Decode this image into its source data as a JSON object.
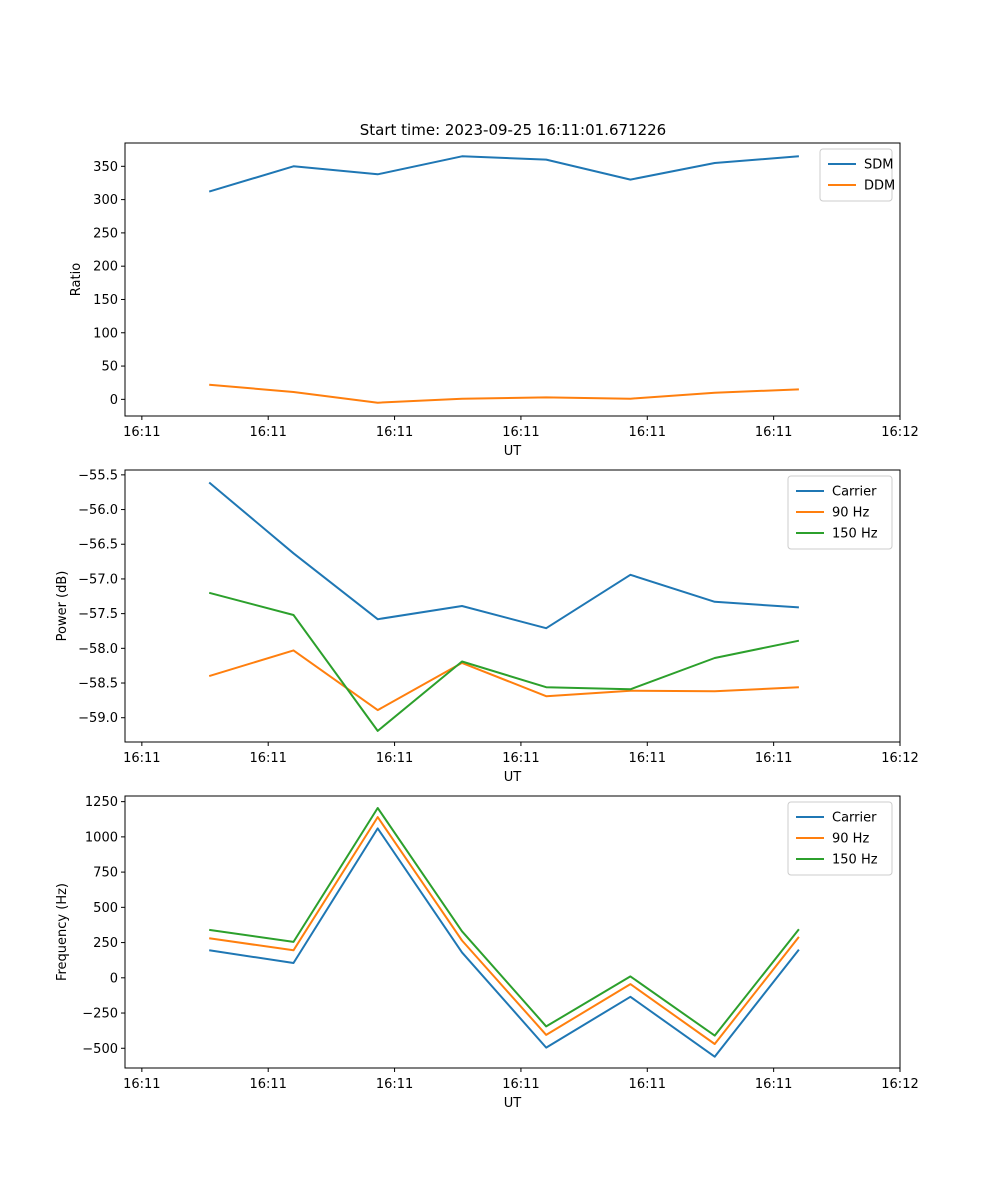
{
  "title": "Start time: 2023-09-25 16:11:01.671226",
  "colors": {
    "blue": "#1f77b4",
    "orange": "#ff7f0e",
    "green": "#2ca02c"
  },
  "chart_data": [
    {
      "type": "line",
      "title": "Start time: 2023-09-25 16:11:01.671226",
      "xlabel": "UT",
      "ylabel": "Ratio",
      "x": [
        1,
        2,
        3,
        4,
        5,
        6,
        7,
        8
      ],
      "xlim": [
        0,
        9.2
      ],
      "xticks": [
        0.2,
        1.7,
        3.2,
        4.7,
        6.2,
        7.7,
        9.2
      ],
      "xtick_labels": [
        "16:11",
        "16:11",
        "16:11",
        "16:11",
        "16:11",
        "16:11",
        "16:12"
      ],
      "ylim": [
        -25,
        385
      ],
      "yticks": [
        0,
        50,
        100,
        150,
        200,
        250,
        300,
        350
      ],
      "ytick_labels": [
        "0",
        "50",
        "100",
        "150",
        "200",
        "250",
        "300",
        "350"
      ],
      "legend_position": "top-right",
      "series": [
        {
          "name": "SDM",
          "color": "#1f77b4",
          "values": [
            312,
            350,
            338,
            365,
            360,
            330,
            355,
            365
          ]
        },
        {
          "name": "DDM",
          "color": "#ff7f0e",
          "values": [
            22,
            11,
            -5,
            1,
            3,
            1,
            10,
            15
          ]
        }
      ]
    },
    {
      "type": "line",
      "title": "",
      "xlabel": "UT",
      "ylabel": "Power (dB)",
      "x": [
        1,
        2,
        3,
        4,
        5,
        6,
        7,
        8
      ],
      "xlim": [
        0,
        9.2
      ],
      "xticks": [
        0.2,
        1.7,
        3.2,
        4.7,
        6.2,
        7.7,
        9.2
      ],
      "xtick_labels": [
        "16:11",
        "16:11",
        "16:11",
        "16:11",
        "16:11",
        "16:11",
        "16:12"
      ],
      "ylim": [
        -59.35,
        -55.43
      ],
      "yticks": [
        -59.0,
        -58.5,
        -58.0,
        -57.5,
        -57.0,
        -56.5,
        -56.0,
        -55.5
      ],
      "ytick_labels": [
        "−59.0",
        "−58.5",
        "−58.0",
        "−57.5",
        "−57.0",
        "−56.5",
        "−56.0",
        "−55.5"
      ],
      "legend_position": "top-right",
      "series": [
        {
          "name": "Carrier",
          "color": "#1f77b4",
          "values": [
            -55.61,
            -56.63,
            -57.58,
            -57.39,
            -57.71,
            -56.94,
            -57.33,
            -57.41
          ]
        },
        {
          "name": "90 Hz",
          "color": "#ff7f0e",
          "values": [
            -58.4,
            -58.03,
            -58.89,
            -58.21,
            -58.69,
            -58.61,
            -58.62,
            -58.56
          ]
        },
        {
          "name": "150 Hz",
          "color": "#2ca02c",
          "values": [
            -57.2,
            -57.52,
            -59.19,
            -58.19,
            -58.56,
            -58.59,
            -58.14,
            -57.89
          ]
        }
      ]
    },
    {
      "type": "line",
      "title": "",
      "xlabel": "UT",
      "ylabel": "Frequency (Hz)",
      "x": [
        1,
        2,
        3,
        4,
        5,
        6,
        7,
        8
      ],
      "xlim": [
        0,
        9.2
      ],
      "xticks": [
        0.2,
        1.7,
        3.2,
        4.7,
        6.2,
        7.7,
        9.2
      ],
      "xtick_labels": [
        "16:11",
        "16:11",
        "16:11",
        "16:11",
        "16:11",
        "16:11",
        "16:12"
      ],
      "ylim": [
        -640,
        1290
      ],
      "yticks": [
        -500,
        -250,
        0,
        250,
        500,
        750,
        1000,
        1250
      ],
      "ytick_labels": [
        "−500",
        "−250",
        "0",
        "250",
        "500",
        "750",
        "1000",
        "1250"
      ],
      "legend_position": "top-right",
      "series": [
        {
          "name": "Carrier",
          "color": "#1f77b4",
          "values": [
            195,
            105,
            1060,
            180,
            -495,
            -135,
            -560,
            200
          ]
        },
        {
          "name": "90 Hz",
          "color": "#ff7f0e",
          "values": [
            280,
            195,
            1140,
            265,
            -405,
            -45,
            -470,
            290
          ]
        },
        {
          "name": "150 Hz",
          "color": "#2ca02c",
          "values": [
            340,
            255,
            1205,
            330,
            -345,
            10,
            -410,
            345
          ]
        }
      ]
    }
  ]
}
